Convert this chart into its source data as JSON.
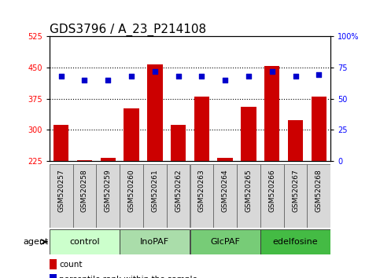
{
  "title": "GDS3796 / A_23_P214108",
  "samples": [
    "GSM520257",
    "GSM520258",
    "GSM520259",
    "GSM520260",
    "GSM520261",
    "GSM520262",
    "GSM520263",
    "GSM520264",
    "GSM520265",
    "GSM520266",
    "GSM520267",
    "GSM520268"
  ],
  "counts": [
    313,
    228,
    233,
    352,
    458,
    313,
    380,
    233,
    355,
    453,
    323,
    380
  ],
  "percentiles": [
    68,
    65,
    65,
    68,
    72,
    68,
    68,
    65,
    68,
    72,
    68,
    69
  ],
  "groups": [
    {
      "label": "control",
      "start": 0,
      "end": 3
    },
    {
      "label": "InoPAF",
      "start": 3,
      "end": 6
    },
    {
      "label": "GlcPAF",
      "start": 6,
      "end": 9
    },
    {
      "label": "edelfosine",
      "start": 9,
      "end": 12
    }
  ],
  "group_colors": [
    "#ccffcc",
    "#aaddaa",
    "#77cc77",
    "#44bb44"
  ],
  "ylim_left": [
    225,
    525
  ],
  "ylim_right": [
    0,
    100
  ],
  "yticks_left": [
    225,
    300,
    375,
    450,
    525
  ],
  "yticks_right": [
    0,
    25,
    50,
    75,
    100
  ],
  "bar_color": "#cc0000",
  "dot_color": "#0000cc",
  "bar_width": 0.65,
  "title_fontsize": 11,
  "tick_fontsize": 7,
  "sample_fontsize": 6.5,
  "group_fontsize": 8,
  "legend_fontsize": 7.5
}
